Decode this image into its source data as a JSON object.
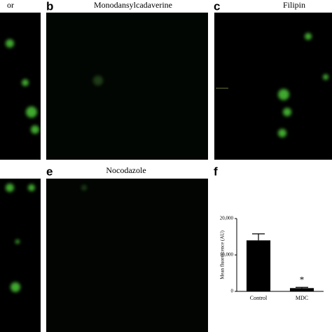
{
  "panels": {
    "a_title": "or",
    "b_label": "b",
    "b_title": "Monodansylcadaverine",
    "c_label": "c",
    "c_title": "Filipin",
    "e_label": "e",
    "e_title": "Nocodazole",
    "f_label": "f"
  },
  "chart_data": {
    "type": "bar",
    "ylabel": "Mean fluorescence (AU)",
    "categories": [
      "Control",
      "MDC"
    ],
    "values": [
      14000,
      900
    ],
    "errors": [
      1800,
      200
    ],
    "color": "#000000",
    "ylim": [
      0,
      20000
    ],
    "yticks": [
      0,
      {
        "value": 10000,
        "label": "10,000"
      },
      {
        "value": 20000,
        "label": "20,000"
      }
    ],
    "annotations": [
      {
        "text": "*",
        "category": 1
      }
    ]
  }
}
